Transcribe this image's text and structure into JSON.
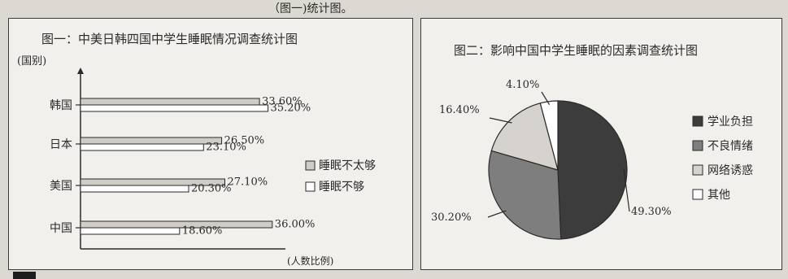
{
  "top_fragment": "（图一)统计图。",
  "chart_data": [
    {
      "type": "bar",
      "orientation": "horizontal",
      "title": "图一：中美日韩四国中学生睡眠情况调查统计图",
      "ylabel": "(国别)",
      "xlabel": "(人数比例)",
      "categories": [
        "韩国",
        "日本",
        "美国",
        "中国"
      ],
      "series": [
        {
          "name": "睡眠不太够",
          "values": [
            33.6,
            26.5,
            27.1,
            36.0
          ],
          "labels": [
            "33.60%",
            "26.50%",
            "27.10%",
            "36.00%"
          ],
          "color": "#d0ccc6"
        },
        {
          "name": "睡眠不够",
          "values": [
            35.2,
            23.1,
            20.3,
            18.6
          ],
          "labels": [
            "35.20%",
            "23.10%",
            "20.30%",
            "18.60%"
          ],
          "color": "#ffffff"
        }
      ],
      "xlim": [
        0,
        50
      ],
      "legend_position": "right"
    },
    {
      "type": "pie",
      "title": "图二：影响中国中学生睡眠的因素调查统计图",
      "categories": [
        "学业负担",
        "不良情绪",
        "网络诱惑",
        "其他"
      ],
      "values": [
        49.3,
        30.2,
        16.4,
        4.1
      ],
      "labels": [
        "49.30%",
        "30.20%",
        "16.40%",
        "4.10%"
      ],
      "colors": [
        "#3c3c3c",
        "#7e7e7e",
        "#d6d3ce",
        "#ffffff"
      ],
      "legend_position": "right"
    }
  ]
}
